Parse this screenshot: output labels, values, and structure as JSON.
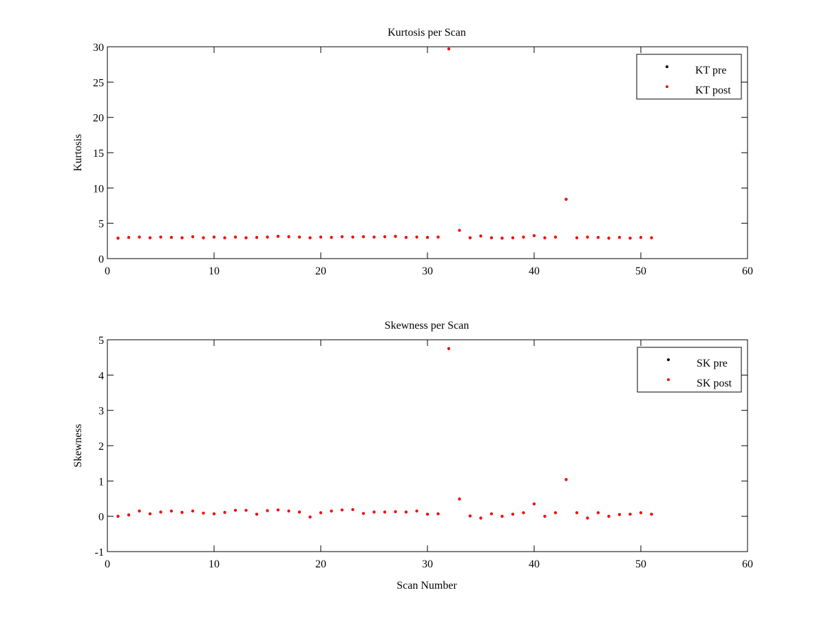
{
  "colors": {
    "pre": "#000000",
    "post": "#ff0000",
    "axis": "#000000",
    "background": "#ffffff"
  },
  "chart_data": [
    {
      "type": "scatter",
      "title": "Kurtosis per Scan",
      "xlabel": "",
      "ylabel": "Kurtosis",
      "xlim": [
        0,
        60
      ],
      "ylim": [
        0,
        30
      ],
      "xticks": [
        0,
        10,
        20,
        30,
        40,
        50,
        60
      ],
      "yticks": [
        0,
        5,
        10,
        15,
        20,
        25,
        30
      ],
      "grid": false,
      "legend_position": "top-right",
      "series": [
        {
          "name": "KT pre",
          "color": "#000000",
          "x": [
            1,
            2,
            3,
            4,
            5,
            6,
            7,
            8,
            9,
            10,
            11,
            12,
            13,
            14,
            15,
            16,
            17,
            18,
            19,
            20,
            21,
            22,
            23,
            24,
            25,
            26,
            27,
            28,
            29,
            30,
            31,
            32,
            33,
            34,
            35,
            36,
            37,
            38,
            39,
            40,
            41,
            42,
            43,
            44,
            45,
            46,
            47,
            48,
            49,
            50,
            51
          ],
          "y": [
            2.9,
            3.0,
            3.05,
            2.95,
            3.05,
            3.0,
            2.95,
            3.1,
            2.95,
            3.05,
            2.95,
            3.05,
            2.95,
            3.0,
            3.05,
            3.15,
            3.1,
            3.05,
            2.95,
            3.05,
            3.0,
            3.1,
            3.05,
            3.1,
            3.05,
            3.1,
            3.15,
            3.0,
            3.05,
            3.0,
            3.05,
            29.7,
            4.0,
            2.95,
            3.2,
            2.95,
            2.9,
            2.95,
            3.05,
            3.25,
            2.95,
            3.05,
            8.4,
            2.95,
            3.05,
            3.0,
            2.9,
            3.0,
            2.9,
            3.0,
            2.95
          ]
        },
        {
          "name": "KT post",
          "color": "#ff0000",
          "x": [
            1,
            2,
            3,
            4,
            5,
            6,
            7,
            8,
            9,
            10,
            11,
            12,
            13,
            14,
            15,
            16,
            17,
            18,
            19,
            20,
            21,
            22,
            23,
            24,
            25,
            26,
            27,
            28,
            29,
            30,
            31,
            32,
            33,
            34,
            35,
            36,
            37,
            38,
            39,
            40,
            41,
            42,
            43,
            44,
            45,
            46,
            47,
            48,
            49,
            50,
            51
          ],
          "y": [
            2.9,
            3.0,
            3.05,
            2.95,
            3.05,
            3.0,
            2.95,
            3.1,
            2.95,
            3.05,
            2.95,
            3.05,
            2.95,
            3.0,
            3.05,
            3.15,
            3.1,
            3.05,
            2.95,
            3.05,
            3.0,
            3.1,
            3.05,
            3.1,
            3.05,
            3.1,
            3.15,
            3.0,
            3.05,
            3.0,
            3.05,
            29.7,
            4.0,
            2.95,
            3.2,
            2.95,
            2.9,
            2.95,
            3.05,
            3.25,
            2.95,
            3.05,
            8.4,
            2.95,
            3.05,
            3.0,
            2.9,
            3.0,
            2.9,
            3.0,
            2.95
          ]
        }
      ]
    },
    {
      "type": "scatter",
      "title": "Skewness per Scan",
      "xlabel": "Scan Number",
      "ylabel": "Skewness",
      "xlim": [
        0,
        60
      ],
      "ylim": [
        -1,
        5
      ],
      "xticks": [
        0,
        10,
        20,
        30,
        40,
        50,
        60
      ],
      "yticks": [
        -1,
        0,
        1,
        2,
        3,
        4,
        5
      ],
      "grid": false,
      "legend_position": "top-right",
      "series": [
        {
          "name": "SK pre",
          "color": "#000000",
          "x": [
            1,
            2,
            3,
            4,
            5,
            6,
            7,
            8,
            9,
            10,
            11,
            12,
            13,
            14,
            15,
            16,
            17,
            18,
            19,
            20,
            21,
            22,
            23,
            24,
            25,
            26,
            27,
            28,
            29,
            30,
            31,
            32,
            33,
            34,
            35,
            36,
            37,
            38,
            39,
            40,
            41,
            42,
            43,
            44,
            45,
            46,
            47,
            48,
            49,
            50,
            51
          ],
          "y": [
            0.0,
            0.04,
            0.15,
            0.07,
            0.12,
            0.15,
            0.11,
            0.15,
            0.09,
            0.07,
            0.11,
            0.17,
            0.17,
            0.06,
            0.16,
            0.18,
            0.15,
            0.12,
            -0.02,
            0.1,
            0.15,
            0.18,
            0.19,
            0.08,
            0.12,
            0.12,
            0.13,
            0.12,
            0.15,
            0.06,
            0.07,
            4.75,
            0.49,
            0.01,
            -0.05,
            0.07,
            0.0,
            0.06,
            0.1,
            0.35,
            0.0,
            0.1,
            1.04,
            0.1,
            -0.05,
            0.1,
            0.0,
            0.05,
            0.06,
            0.1,
            0.06
          ]
        },
        {
          "name": "SK post",
          "color": "#ff0000",
          "x": [
            1,
            2,
            3,
            4,
            5,
            6,
            7,
            8,
            9,
            10,
            11,
            12,
            13,
            14,
            15,
            16,
            17,
            18,
            19,
            20,
            21,
            22,
            23,
            24,
            25,
            26,
            27,
            28,
            29,
            30,
            31,
            32,
            33,
            34,
            35,
            36,
            37,
            38,
            39,
            40,
            41,
            42,
            43,
            44,
            45,
            46,
            47,
            48,
            49,
            50,
            51
          ],
          "y": [
            0.0,
            0.04,
            0.15,
            0.07,
            0.12,
            0.15,
            0.11,
            0.15,
            0.09,
            0.07,
            0.11,
            0.17,
            0.17,
            0.06,
            0.16,
            0.18,
            0.15,
            0.12,
            -0.02,
            0.1,
            0.15,
            0.18,
            0.19,
            0.08,
            0.12,
            0.12,
            0.13,
            0.12,
            0.15,
            0.06,
            0.07,
            4.75,
            0.49,
            0.01,
            -0.05,
            0.07,
            0.0,
            0.06,
            0.1,
            0.35,
            0.0,
            0.1,
            1.04,
            0.1,
            -0.05,
            0.1,
            0.0,
            0.05,
            0.06,
            0.1,
            0.06
          ]
        }
      ]
    }
  ]
}
